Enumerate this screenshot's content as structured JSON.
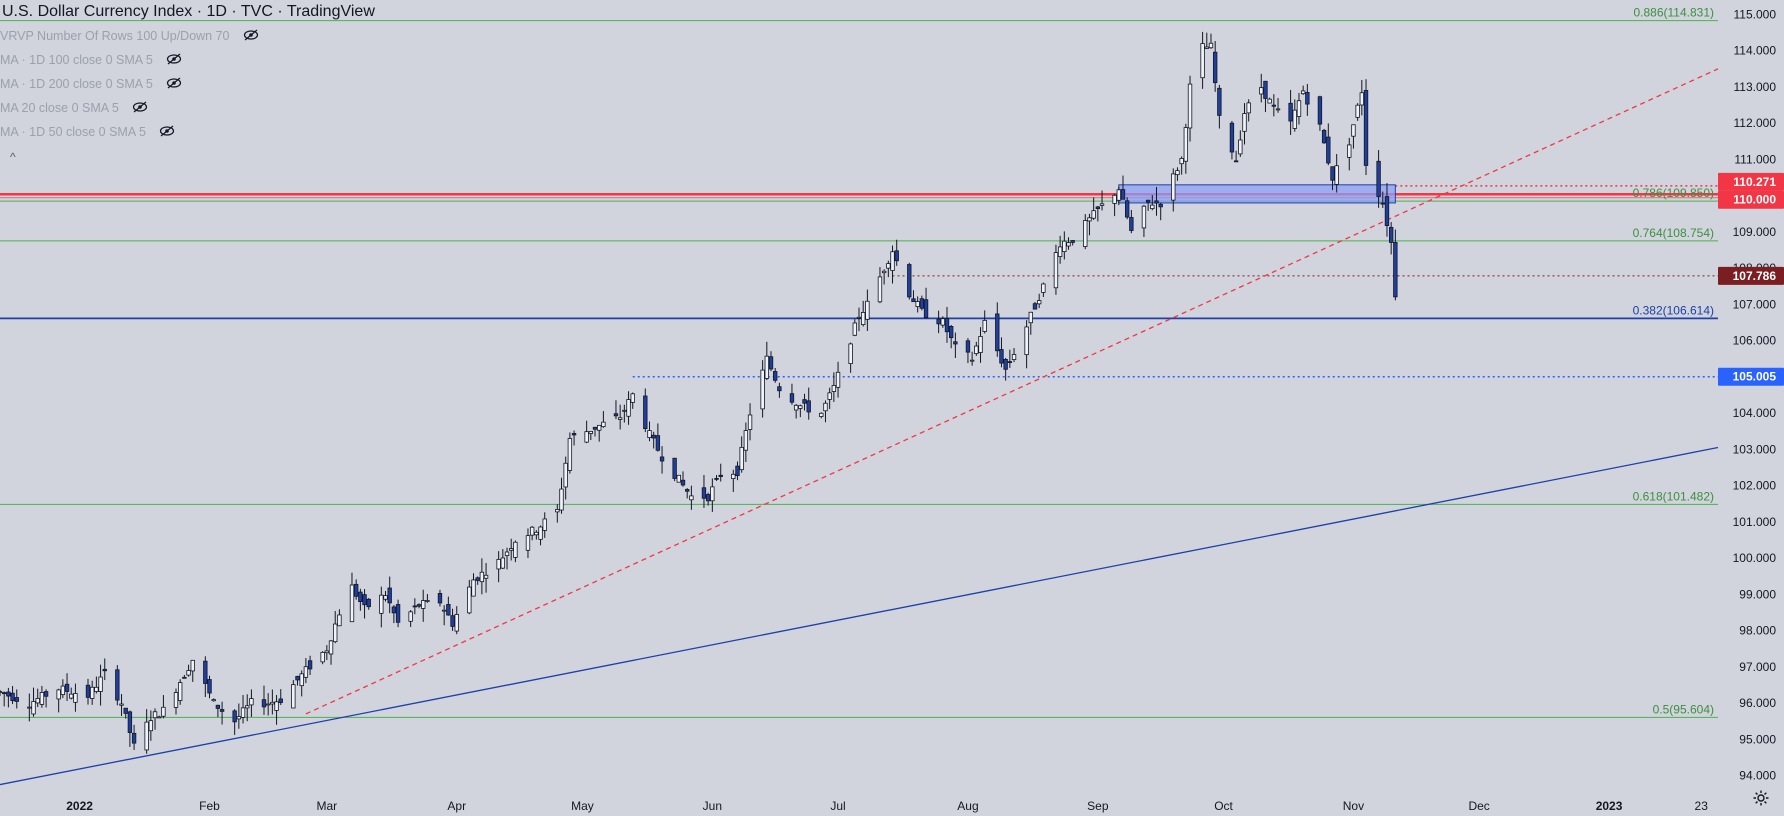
{
  "header": {
    "title": "U.S. Dollar Currency Index · 1D · TVC · TradingView",
    "indicators": [
      "VRVP Number Of Rows 100 Up/Down 70",
      "MA · 1D 100 close 0 SMA 5",
      "MA · 1D 200 close 0 SMA 5",
      "MA 20 close 0 SMA 5",
      "MA · 1D 50 close 0 SMA 5"
    ],
    "collapse_glyph": "^"
  },
  "icons": {
    "indicator_visibility": "eye-slash-icon",
    "collapse": "chevron-up-icon",
    "settings": "gear-icon"
  },
  "colors": {
    "background": "#d1d4dc",
    "up_candle": "#f0f3fa",
    "down_candle": "#1f3f9e",
    "fib_lines": "#4caf50",
    "fib_label_text": "#3d8f40",
    "support_line": "#1e40a8",
    "red_zone": "#f23645",
    "trendline_dashed": "#f23645",
    "zone_fill": "#8c9ff7",
    "price_tag_blue": "#2962ff",
    "price_tag_red": "#f23645",
    "price_tag_dark_red": "#7a1e22"
  },
  "chart_data": {
    "type": "candlestick",
    "title": "U.S. Dollar Currency Index · 1D · TVC · TradingView",
    "x_range": [
      "2021-12-13",
      "2023-01-27"
    ],
    "y_range": [
      93.6,
      115.4
    ],
    "x_ticks": [
      {
        "label": "2022",
        "date": "2022-01-01"
      },
      {
        "label": "Feb",
        "date": "2022-02-01"
      },
      {
        "label": "Mar",
        "date": "2022-03-01"
      },
      {
        "label": "Apr",
        "date": "2022-04-01"
      },
      {
        "label": "May",
        "date": "2022-05-01"
      },
      {
        "label": "Jun",
        "date": "2022-06-01"
      },
      {
        "label": "Jul",
        "date": "2022-07-01"
      },
      {
        "label": "Aug",
        "date": "2022-08-01"
      },
      {
        "label": "Sep",
        "date": "2022-09-01"
      },
      {
        "label": "Oct",
        "date": "2022-10-01"
      },
      {
        "label": "Nov",
        "date": "2022-11-01"
      },
      {
        "label": "Dec",
        "date": "2022-12-01"
      },
      {
        "label": "2023",
        "date": "2023-01-01"
      },
      {
        "label": "23",
        "date": "2023-01-23"
      }
    ],
    "y_ticks": [
      "94.000",
      "95.000",
      "96.000",
      "97.000",
      "98.000",
      "99.000",
      "100.000",
      "101.000",
      "102.000",
      "103.000",
      "104.000",
      "105.000",
      "106.000",
      "107.000",
      "108.000",
      "109.000",
      "110.000",
      "111.000",
      "112.000",
      "113.000",
      "114.000",
      "115.000"
    ],
    "price_path": [
      [
        "2021-12-13",
        96.3
      ],
      [
        "2021-12-20",
        96.0
      ],
      [
        "2021-12-27",
        96.4
      ],
      [
        "2022-01-03",
        96.2
      ],
      [
        "2022-01-07",
        96.8
      ],
      [
        "2022-01-11",
        96.0
      ],
      [
        "2022-01-14",
        94.8
      ],
      [
        "2022-01-18",
        95.6
      ],
      [
        "2022-01-21",
        95.8
      ],
      [
        "2022-01-26",
        96.8
      ],
      [
        "2022-01-28",
        97.2
      ],
      [
        "2022-02-02",
        96.0
      ],
      [
        "2022-02-07",
        95.5
      ],
      [
        "2022-02-11",
        96.0
      ],
      [
        "2022-02-15",
        96.0
      ],
      [
        "2022-02-18",
        96.1
      ],
      [
        "2022-02-24",
        96.9
      ],
      [
        "2022-03-01",
        97.5
      ],
      [
        "2022-03-04",
        98.5
      ],
      [
        "2022-03-07",
        99.2
      ],
      [
        "2022-03-10",
        98.6
      ],
      [
        "2022-03-15",
        99.0
      ],
      [
        "2022-03-18",
        98.2
      ],
      [
        "2022-03-23",
        98.7
      ],
      [
        "2022-03-28",
        98.8
      ],
      [
        "2022-03-31",
        98.2
      ],
      [
        "2022-04-05",
        99.4
      ],
      [
        "2022-04-11",
        99.9
      ],
      [
        "2022-04-15",
        100.5
      ],
      [
        "2022-04-20",
        100.8
      ],
      [
        "2022-04-25",
        101.3
      ],
      [
        "2022-04-28",
        103.3
      ],
      [
        "2022-05-02",
        103.5
      ],
      [
        "2022-05-06",
        103.7
      ],
      [
        "2022-05-10",
        103.9
      ],
      [
        "2022-05-13",
        104.5
      ],
      [
        "2022-05-17",
        103.4
      ],
      [
        "2022-05-20",
        102.8
      ],
      [
        "2022-05-25",
        102.0
      ],
      [
        "2022-05-27",
        101.7
      ],
      [
        "2022-05-31",
        101.7
      ],
      [
        "2022-06-03",
        102.3
      ],
      [
        "2022-06-07",
        102.4
      ],
      [
        "2022-06-10",
        104.0
      ],
      [
        "2022-06-14",
        105.5
      ],
      [
        "2022-06-17",
        104.7
      ],
      [
        "2022-06-22",
        104.2
      ],
      [
        "2022-06-27",
        104.0
      ],
      [
        "2022-06-30",
        104.7
      ],
      [
        "2022-07-06",
        106.7
      ],
      [
        "2022-07-08",
        107.0
      ],
      [
        "2022-07-12",
        108.0
      ],
      [
        "2022-07-14",
        108.5
      ],
      [
        "2022-07-18",
        107.3
      ],
      [
        "2022-07-21",
        106.8
      ],
      [
        "2022-07-26",
        106.5
      ],
      [
        "2022-07-29",
        105.8
      ],
      [
        "2022-08-02",
        105.5
      ],
      [
        "2022-08-05",
        106.5
      ],
      [
        "2022-08-10",
        105.2
      ],
      [
        "2022-08-15",
        106.4
      ],
      [
        "2022-08-19",
        107.5
      ],
      [
        "2022-08-23",
        108.7
      ],
      [
        "2022-08-26",
        108.8
      ],
      [
        "2022-09-01",
        109.6
      ],
      [
        "2022-09-06",
        110.2
      ],
      [
        "2022-09-09",
        109.0
      ],
      [
        "2022-09-13",
        109.8
      ],
      [
        "2022-09-16",
        109.8
      ],
      [
        "2022-09-21",
        111.0
      ],
      [
        "2022-09-23",
        113.0
      ],
      [
        "2022-09-26",
        114.1
      ],
      [
        "2022-09-28",
        114.1
      ],
      [
        "2022-09-30",
        112.1
      ],
      [
        "2022-10-04",
        111.0
      ],
      [
        "2022-10-06",
        112.3
      ],
      [
        "2022-10-10",
        113.0
      ],
      [
        "2022-10-13",
        112.4
      ],
      [
        "2022-10-17",
        112.0
      ],
      [
        "2022-10-20",
        112.9
      ],
      [
        "2022-10-24",
        111.9
      ],
      [
        "2022-10-27",
        110.5
      ],
      [
        "2022-10-31",
        111.5
      ],
      [
        "2022-11-03",
        112.9
      ],
      [
        "2022-11-04",
        110.9
      ],
      [
        "2022-11-08",
        109.8
      ],
      [
        "2022-11-10",
        108.7
      ],
      [
        "2022-11-11",
        107.3
      ]
    ],
    "horizontal_levels": [
      {
        "label": "0.886(114.831)",
        "value": 114.831,
        "style": "fib"
      },
      {
        "label": "0.786(109.850)",
        "value": 109.85,
        "style": "fib"
      },
      {
        "label": "0.764(108.754)",
        "value": 108.754,
        "style": "fib"
      },
      {
        "label": "0.382(106.614)",
        "value": 106.614,
        "style": "support"
      },
      {
        "label": "0.618(101.482)",
        "value": 101.482,
        "style": "fib"
      },
      {
        "label": "0.5(95.604)",
        "value": 95.604,
        "style": "fib"
      },
      {
        "label": "",
        "value": 110.0,
        "style": "red-zone"
      },
      {
        "label": "",
        "value": 105.005,
        "style": "dotted-blue"
      },
      {
        "label": "",
        "value": 110.271,
        "style": "dotted-red"
      },
      {
        "label": "",
        "value": 107.786,
        "style": "dotted-darkred"
      }
    ],
    "price_tags": [
      {
        "text": "110.271",
        "value": 110.271,
        "color": "#f23645"
      },
      {
        "text": "110.000",
        "value": 110.0,
        "color": "#f23645"
      },
      {
        "text": "107.786",
        "value": 107.786,
        "color": "#7a1e22"
      },
      {
        "text": "105.005",
        "value": 105.005,
        "color": "#2962ff"
      }
    ],
    "zone": {
      "from": "2022-09-06",
      "to": "2022-11-11",
      "low": 109.8,
      "high": 110.3
    },
    "trendlines": [
      {
        "style": "solid-blue",
        "from": [
          "2021-12-13",
          93.75
        ],
        "to": [
          "2023-01-27",
          103.05
        ]
      },
      {
        "style": "dashed-red",
        "from": [
          "2022-02-24",
          95.7
        ],
        "to": [
          "2023-01-27",
          113.5
        ]
      }
    ]
  }
}
